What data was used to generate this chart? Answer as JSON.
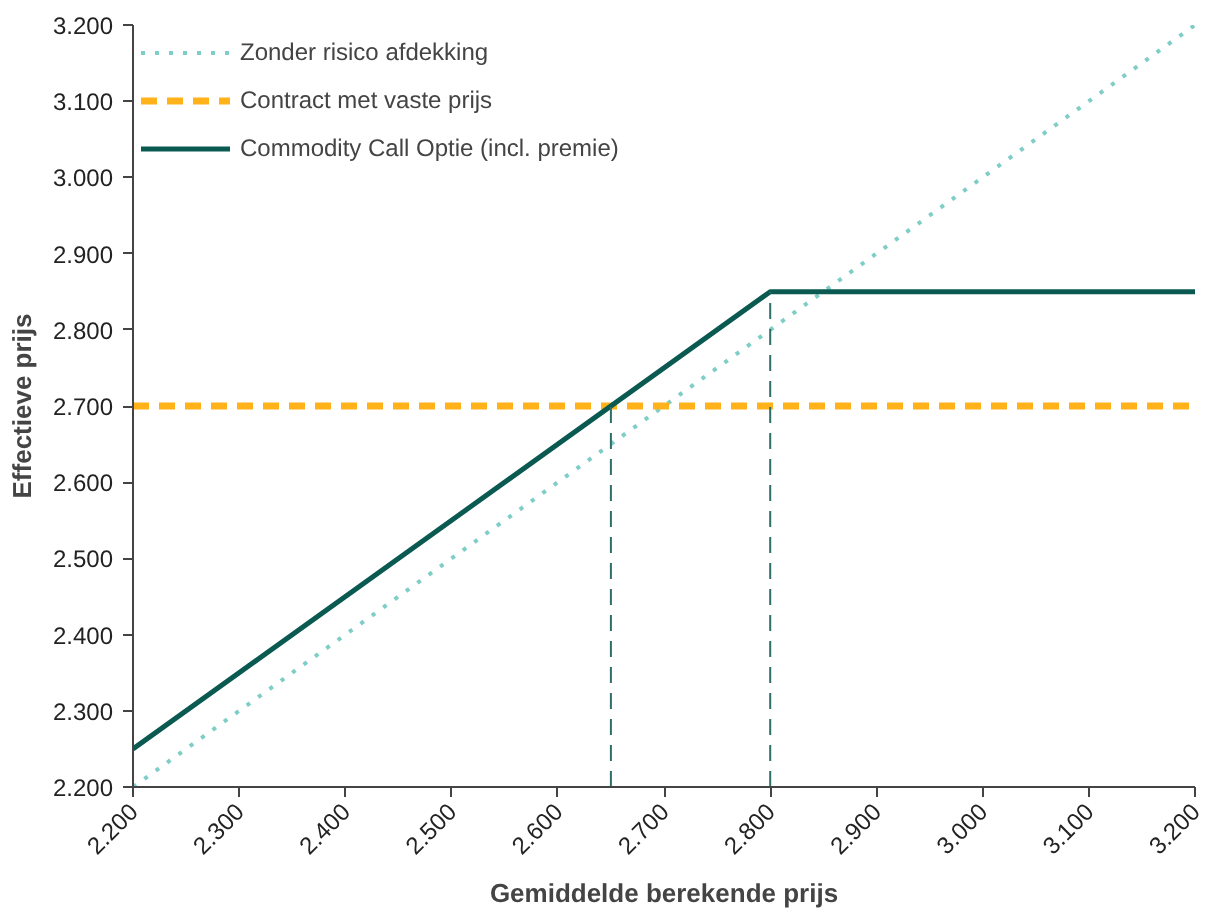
{
  "chart_data": {
    "type": "line",
    "xlabel": "Gemiddelde berekende prijs",
    "ylabel": "Effectieve prijs",
    "series": [
      {
        "name": "Zonder risico afdekking",
        "color": "#7ecdc6",
        "line_style": "dotted",
        "x": [
          2200,
          3200
        ],
        "values": [
          2200,
          3200
        ]
      },
      {
        "name": "Contract met vaste prijs",
        "color": "#ffb21a",
        "line_style": "dashed",
        "x": [
          2200,
          3200
        ],
        "values": [
          2700,
          2700
        ]
      },
      {
        "name": "Commodity Call Optie (incl. premie)",
        "color": "#0b5a52",
        "line_style": "solid",
        "x": [
          2200,
          2800,
          3200
        ],
        "values": [
          2250,
          2850,
          2850
        ]
      }
    ],
    "ref_lines": [
      {
        "axis": "x",
        "value": 2650,
        "color": "#2e6f6a",
        "line_style": "dashed"
      },
      {
        "axis": "x",
        "value": 2800,
        "color": "#2e6f6a",
        "line_style": "dashed"
      }
    ],
    "xlim": [
      2200,
      3200
    ],
    "ylim": [
      2200,
      3200
    ],
    "xticks": [
      {
        "value": 2200,
        "label": "2.200"
      },
      {
        "value": 2300,
        "label": "2.300"
      },
      {
        "value": 2400,
        "label": "2.400"
      },
      {
        "value": 2500,
        "label": "2.500"
      },
      {
        "value": 2600,
        "label": "2.600"
      },
      {
        "value": 2700,
        "label": "2.700"
      },
      {
        "value": 2800,
        "label": "2.800"
      },
      {
        "value": 2900,
        "label": "2.900"
      },
      {
        "value": 3000,
        "label": "3.000"
      },
      {
        "value": 3100,
        "label": "3.100"
      },
      {
        "value": 3200,
        "label": "3.200"
      }
    ],
    "yticks": [
      {
        "value": 2200,
        "label": "2.200"
      },
      {
        "value": 2300,
        "label": "2.300"
      },
      {
        "value": 2400,
        "label": "2.400"
      },
      {
        "value": 2500,
        "label": "2.500"
      },
      {
        "value": 2600,
        "label": "2.600"
      },
      {
        "value": 2700,
        "label": "2.700"
      },
      {
        "value": 2800,
        "label": "2.800"
      },
      {
        "value": 2900,
        "label": "2.900"
      },
      {
        "value": 3000,
        "label": "3.000"
      },
      {
        "value": 3100,
        "label": "3.100"
      },
      {
        "value": 3200,
        "label": "3.200"
      }
    ],
    "grid": false,
    "legend": "top left",
    "marker": "none"
  }
}
